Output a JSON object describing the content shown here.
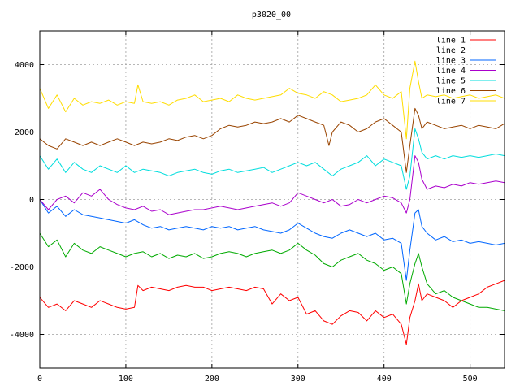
{
  "chart_data": {
    "type": "line",
    "title": "p3020_00",
    "xlabel": "",
    "ylabel": "",
    "xlim": [
      0,
      540
    ],
    "ylim": [
      -5000,
      5000
    ],
    "xticks": [
      0,
      100,
      200,
      300,
      400,
      500
    ],
    "yticks": [
      -4000,
      -2000,
      0,
      2000,
      4000
    ],
    "grid": true,
    "legend_position": "top-right",
    "series": [
      {
        "name": "line 1",
        "color": "#ff0000",
        "x": [
          0,
          10,
          20,
          30,
          40,
          50,
          60,
          70,
          80,
          90,
          100,
          110,
          114,
          120,
          130,
          140,
          150,
          160,
          170,
          180,
          190,
          200,
          210,
          220,
          230,
          240,
          250,
          260,
          270,
          280,
          290,
          300,
          310,
          320,
          330,
          340,
          350,
          360,
          370,
          380,
          390,
          400,
          410,
          420,
          426,
          430,
          436,
          440,
          444,
          450,
          460,
          470,
          480,
          490,
          500,
          510,
          520,
          530,
          540
        ],
        "y": [
          -2900,
          -3200,
          -3100,
          -3300,
          -3000,
          -3100,
          -3200,
          -3000,
          -3100,
          -3200,
          -3250,
          -3200,
          -2550,
          -2700,
          -2600,
          -2650,
          -2700,
          -2600,
          -2550,
          -2600,
          -2600,
          -2700,
          -2650,
          -2600,
          -2650,
          -2700,
          -2600,
          -2650,
          -3100,
          -2800,
          -3000,
          -2900,
          -3400,
          -3300,
          -3600,
          -3700,
          -3450,
          -3300,
          -3350,
          -3600,
          -3300,
          -3500,
          -3400,
          -3700,
          -4300,
          -3500,
          -3000,
          -2500,
          -3000,
          -2800,
          -2900,
          -3000,
          -3200,
          -3000,
          -2900,
          -2800,
          -2600,
          -2500,
          -2400
        ]
      },
      {
        "name": "line 2",
        "color": "#00aa00",
        "x": [
          0,
          10,
          20,
          30,
          40,
          50,
          60,
          70,
          80,
          90,
          100,
          110,
          120,
          130,
          140,
          150,
          160,
          170,
          180,
          190,
          200,
          210,
          220,
          230,
          240,
          250,
          260,
          270,
          280,
          290,
          300,
          310,
          320,
          330,
          340,
          350,
          360,
          370,
          380,
          390,
          400,
          410,
          420,
          426,
          430,
          436,
          440,
          444,
          450,
          460,
          470,
          480,
          490,
          500,
          510,
          520,
          530,
          540
        ],
        "y": [
          -1000,
          -1400,
          -1200,
          -1700,
          -1300,
          -1500,
          -1600,
          -1400,
          -1500,
          -1600,
          -1700,
          -1600,
          -1550,
          -1700,
          -1600,
          -1750,
          -1650,
          -1700,
          -1600,
          -1750,
          -1700,
          -1600,
          -1550,
          -1600,
          -1700,
          -1600,
          -1550,
          -1500,
          -1600,
          -1500,
          -1300,
          -1500,
          -1650,
          -1900,
          -2000,
          -1800,
          -1700,
          -1600,
          -1800,
          -1900,
          -2100,
          -2000,
          -2200,
          -3100,
          -2500,
          -1900,
          -1600,
          -2000,
          -2500,
          -2800,
          -2700,
          -2900,
          -3000,
          -3100,
          -3200,
          -3200,
          -3250,
          -3300
        ]
      },
      {
        "name": "line 3",
        "color": "#0066ff",
        "x": [
          0,
          10,
          20,
          30,
          40,
          50,
          60,
          70,
          80,
          90,
          100,
          110,
          120,
          130,
          140,
          150,
          160,
          170,
          180,
          190,
          200,
          210,
          220,
          230,
          240,
          250,
          260,
          270,
          280,
          290,
          300,
          310,
          320,
          330,
          340,
          350,
          360,
          370,
          380,
          390,
          400,
          410,
          420,
          426,
          430,
          436,
          440,
          444,
          450,
          460,
          470,
          480,
          490,
          500,
          510,
          520,
          530,
          540
        ],
        "y": [
          0,
          -400,
          -200,
          -500,
          -300,
          -450,
          -500,
          -550,
          -600,
          -650,
          -700,
          -600,
          -750,
          -850,
          -800,
          -900,
          -850,
          -800,
          -850,
          -900,
          -800,
          -850,
          -800,
          -900,
          -850,
          -800,
          -900,
          -950,
          -1000,
          -900,
          -700,
          -850,
          -1000,
          -1100,
          -1150,
          -1000,
          -900,
          -1000,
          -1100,
          -1000,
          -1200,
          -1150,
          -1300,
          -2400,
          -1500,
          -400,
          -300,
          -800,
          -1000,
          -1200,
          -1100,
          -1250,
          -1200,
          -1300,
          -1250,
          -1300,
          -1350,
          -1300
        ]
      },
      {
        "name": "line 4",
        "color": "#aa00cc",
        "x": [
          0,
          10,
          20,
          30,
          40,
          50,
          60,
          70,
          80,
          90,
          100,
          110,
          120,
          130,
          140,
          150,
          160,
          170,
          180,
          190,
          200,
          210,
          220,
          230,
          240,
          250,
          260,
          270,
          280,
          290,
          300,
          310,
          320,
          330,
          340,
          350,
          360,
          370,
          380,
          390,
          400,
          410,
          420,
          426,
          430,
          436,
          440,
          444,
          450,
          460,
          470,
          480,
          490,
          500,
          510,
          520,
          530,
          540
        ],
        "y": [
          0,
          -300,
          0,
          100,
          -100,
          200,
          100,
          300,
          0,
          -150,
          -250,
          -300,
          -200,
          -350,
          -300,
          -450,
          -400,
          -350,
          -300,
          -300,
          -250,
          -200,
          -250,
          -300,
          -250,
          -200,
          -150,
          -100,
          -200,
          -100,
          200,
          100,
          0,
          -100,
          0,
          -200,
          -150,
          0,
          -100,
          0,
          100,
          50,
          -100,
          -400,
          0,
          1300,
          1100,
          600,
          300,
          400,
          350,
          450,
          400,
          500,
          450,
          500,
          550,
          500
        ]
      },
      {
        "name": "line 5",
        "color": "#00dddd",
        "x": [
          0,
          10,
          20,
          30,
          40,
          50,
          60,
          70,
          80,
          90,
          100,
          110,
          120,
          130,
          140,
          150,
          160,
          170,
          180,
          190,
          200,
          210,
          220,
          230,
          240,
          250,
          260,
          270,
          280,
          290,
          300,
          310,
          320,
          330,
          340,
          350,
          360,
          370,
          380,
          390,
          400,
          410,
          420,
          426,
          430,
          436,
          440,
          444,
          450,
          460,
          470,
          480,
          490,
          500,
          510,
          520,
          530,
          540
        ],
        "y": [
          1300,
          900,
          1200,
          800,
          1100,
          900,
          800,
          1000,
          900,
          800,
          1000,
          800,
          900,
          850,
          800,
          700,
          800,
          850,
          900,
          800,
          750,
          850,
          900,
          800,
          850,
          900,
          950,
          800,
          900,
          1000,
          1100,
          1000,
          1100,
          900,
          700,
          900,
          1000,
          1100,
          1300,
          1000,
          1200,
          1100,
          1000,
          300,
          700,
          2100,
          1800,
          1400,
          1200,
          1300,
          1200,
          1300,
          1250,
          1300,
          1250,
          1300,
          1350,
          1300
        ]
      },
      {
        "name": "line 6",
        "color": "#994400",
        "x": [
          0,
          10,
          20,
          30,
          40,
          50,
          60,
          70,
          80,
          90,
          100,
          110,
          120,
          130,
          140,
          150,
          160,
          170,
          180,
          190,
          200,
          210,
          220,
          230,
          240,
          250,
          260,
          270,
          280,
          290,
          300,
          310,
          320,
          330,
          336,
          340,
          350,
          360,
          370,
          380,
          390,
          400,
          410,
          420,
          426,
          430,
          436,
          440,
          444,
          450,
          460,
          470,
          480,
          490,
          500,
          510,
          520,
          530,
          540
        ],
        "y": [
          1800,
          1600,
          1500,
          1800,
          1700,
          1600,
          1700,
          1600,
          1700,
          1800,
          1700,
          1600,
          1700,
          1650,
          1700,
          1800,
          1750,
          1850,
          1900,
          1800,
          1900,
          2100,
          2200,
          2150,
          2200,
          2300,
          2250,
          2300,
          2400,
          2300,
          2500,
          2400,
          2300,
          2200,
          1600,
          2000,
          2300,
          2200,
          2000,
          2100,
          2300,
          2400,
          2200,
          2000,
          800,
          1600,
          2700,
          2500,
          2100,
          2300,
          2200,
          2100,
          2150,
          2200,
          2100,
          2200,
          2150,
          2100,
          2250
        ]
      },
      {
        "name": "line 7",
        "color": "#ffdd00",
        "x": [
          0,
          10,
          20,
          30,
          40,
          50,
          60,
          70,
          80,
          90,
          100,
          110,
          114,
          120,
          130,
          140,
          150,
          160,
          170,
          180,
          190,
          200,
          210,
          220,
          230,
          240,
          250,
          260,
          270,
          280,
          290,
          300,
          310,
          320,
          330,
          340,
          350,
          360,
          370,
          380,
          390,
          400,
          410,
          420,
          426,
          430,
          436,
          440,
          444,
          450,
          460,
          470,
          480,
          490,
          500,
          510,
          520,
          530,
          540
        ],
        "y": [
          3300,
          2700,
          3100,
          2600,
          3000,
          2800,
          2900,
          2850,
          2950,
          2800,
          2900,
          2850,
          3400,
          2900,
          2850,
          2900,
          2800,
          2950,
          3000,
          3100,
          2900,
          2950,
          3000,
          2900,
          3100,
          3000,
          2950,
          3000,
          3050,
          3100,
          3300,
          3150,
          3100,
          3000,
          3200,
          3100,
          2900,
          2950,
          3000,
          3100,
          3400,
          3100,
          3000,
          3200,
          1800,
          3300,
          4100,
          3500,
          3000,
          3100,
          3050,
          3100,
          3000,
          3050,
          3100,
          3000,
          3050,
          3100,
          3000
        ]
      }
    ]
  }
}
